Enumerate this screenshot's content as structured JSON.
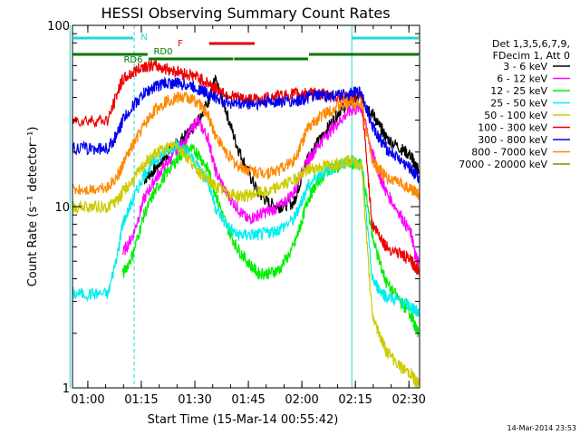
{
  "chart_data": {
    "type": "line",
    "title": "HESSI Observing Summary Count Rates",
    "xlabel": "Start Time (15-Mar-14 00:55:42)",
    "ylabel": "Count Rate (s⁻¹ detector⁻¹)",
    "y_scale": "log",
    "ylim": [
      1,
      100
    ],
    "x_range_minutes": [
      "00:55:42",
      "02:33:00"
    ],
    "x_ticks": [
      "01:00",
      "01:15",
      "01:30",
      "01:45",
      "02:00",
      "02:15",
      "02:30"
    ],
    "y_ticks": [
      "1",
      "10",
      "100"
    ],
    "grid": false,
    "legend_placement": "right",
    "legend_header": [
      "Det 1,3,5,6,7,9,",
      "FDecim 1, Att 0"
    ],
    "timestamp": "14-Mar-2014 23:53",
    "annotations": {
      "night": {
        "label": "N",
        "color": "#22d8d8",
        "intervals": [
          [
            "00:55",
            "01:13"
          ],
          [
            "02:14",
            "02:33"
          ]
        ]
      },
      "flare": {
        "label": "F",
        "color": "#e00000",
        "intervals": [
          [
            "01:34",
            "01:47"
          ]
        ]
      },
      "rd6": {
        "label": "RD6",
        "color": "#007700",
        "intervals": [
          [
            "00:55",
            "01:17"
          ],
          [
            "02:02",
            "02:33"
          ]
        ]
      },
      "rd0": {
        "label": "RD0",
        "color": "#007700",
        "intervals": [
          [
            "01:17",
            "01:41"
          ],
          [
            "01:41",
            "02:02"
          ]
        ]
      }
    },
    "x_minutes": [
      0,
      5,
      10,
      13,
      14,
      17,
      20,
      23,
      26,
      29,
      32,
      35,
      38,
      40,
      43,
      46,
      49,
      52,
      55,
      58,
      62,
      64,
      66,
      69,
      72,
      75,
      78,
      81,
      84,
      86,
      88,
      92,
      95,
      96,
      97
    ],
    "series": [
      {
        "name": "3 - 6 keV",
        "color": "#000000",
        "values": [
          null,
          null,
          null,
          null,
          null,
          null,
          14,
          16,
          19,
          22,
          25,
          30,
          38,
          50,
          34,
          22,
          16,
          12,
          10.5,
          10,
          10.5,
          14,
          19,
          23,
          28,
          34,
          38,
          40,
          33,
          28,
          24,
          21,
          19,
          17,
          16
        ]
      },
      {
        "name": "6 - 12 keV",
        "color": "#ff00ff",
        "values": [
          null,
          null,
          null,
          null,
          5.5,
          7,
          11,
          14,
          17,
          20,
          24,
          30,
          24,
          16,
          12,
          10,
          8.5,
          9,
          9.5,
          10,
          12,
          15,
          18,
          22,
          26,
          30,
          34,
          35,
          20,
          15,
          12,
          9,
          7,
          5.5,
          5
        ]
      },
      {
        "name": "12 - 25 keV",
        "color": "#00ee00",
        "values": [
          null,
          null,
          null,
          null,
          4.2,
          5.5,
          9,
          12,
          15,
          18,
          21,
          20,
          16,
          12,
          8,
          6,
          5,
          4.3,
          4.3,
          4.5,
          6,
          8,
          11,
          14,
          16,
          17,
          17.5,
          17,
          7,
          5,
          3.8,
          3,
          2.5,
          2.2,
          2
        ]
      },
      {
        "name": "25 - 50 keV",
        "color": "#00eeee",
        "values": [
          3.3,
          3.3,
          3.3,
          6,
          8,
          11,
          15,
          18,
          20,
          22,
          20,
          17,
          14,
          10,
          8,
          7,
          7,
          7,
          7.2,
          7.5,
          8.5,
          10.5,
          13,
          15,
          16,
          17,
          18,
          17,
          4,
          3.5,
          3.2,
          3,
          2.8,
          2.7,
          2.6
        ]
      },
      {
        "name": "50 - 100 keV",
        "color": "#cccc00",
        "values": [
          10,
          10,
          10,
          11,
          12,
          14,
          17,
          19.5,
          21,
          22,
          19,
          16,
          14,
          13,
          12,
          11.5,
          11.5,
          12,
          12,
          13,
          14,
          15,
          16,
          16.5,
          17,
          17.5,
          18,
          17,
          2.5,
          2,
          1.6,
          1.3,
          1.2,
          1.1,
          1.05
        ]
      },
      {
        "name": "100 - 300 keV",
        "color": "#ee0000",
        "values": [
          30,
          30,
          30,
          45,
          50,
          55,
          60,
          60,
          58,
          56,
          54,
          52,
          48,
          45,
          42,
          40,
          39,
          39,
          40,
          41,
          42,
          42,
          42,
          42,
          41,
          40,
          40,
          40,
          8,
          7,
          6,
          5.5,
          5,
          4.7,
          4.5
        ]
      },
      {
        "name": "300 - 800 keV",
        "color": "#0000ee",
        "values": [
          21,
          21,
          21,
          26,
          30,
          36,
          42,
          46,
          48,
          48,
          47,
          45,
          42,
          40,
          38,
          37,
          37,
          37,
          38,
          38,
          38,
          39,
          40,
          41,
          41,
          41,
          42,
          43,
          28,
          24,
          21,
          18,
          16,
          15,
          14.5
        ]
      },
      {
        "name": "800 - 7000 keV",
        "color": "#ff8800",
        "values": [
          12.5,
          12.5,
          13,
          15,
          17,
          22,
          28,
          34,
          38,
          40,
          40,
          38,
          32,
          25,
          20,
          17,
          16,
          15.5,
          15.5,
          16,
          18,
          22,
          27,
          31,
          34,
          36,
          38,
          37,
          18,
          16,
          14.5,
          13.5,
          12.5,
          12,
          11.5
        ]
      },
      {
        "name": "7000 - 20000 keV",
        "color": "#888800",
        "values": [
          null,
          null,
          null,
          null,
          null,
          null,
          null,
          null,
          null,
          null,
          null,
          null,
          null,
          null,
          null,
          null,
          null,
          null,
          null,
          null,
          null,
          null,
          null,
          null,
          null,
          null,
          null,
          null,
          null,
          null,
          null,
          null,
          null,
          null,
          null
        ]
      }
    ]
  }
}
